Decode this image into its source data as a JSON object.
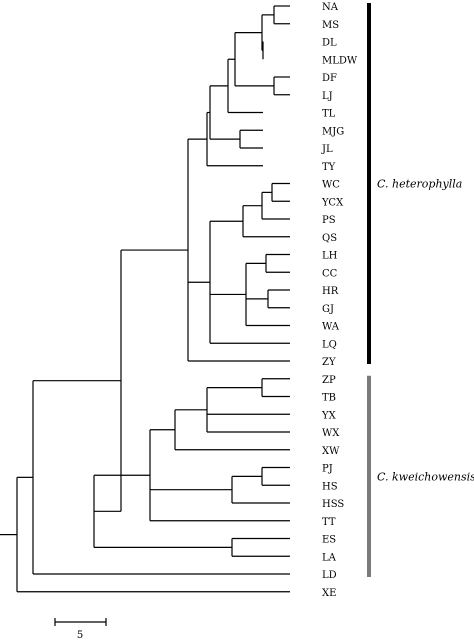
{
  "taxa": [
    "NA",
    "MS",
    "DL",
    "MLDW",
    "DF",
    "LJ",
    "TL",
    "MJG",
    "JL",
    "TY",
    "WC",
    "YCX",
    "PS",
    "QS",
    "LH",
    "CC",
    "HR",
    "GJ",
    "WA",
    "LQ",
    "ZY",
    "ZP",
    "TB",
    "YX",
    "WX",
    "XW",
    "PJ",
    "HS",
    "HSS",
    "TT",
    "ES",
    "LA",
    "LD",
    "XE"
  ],
  "groups": [
    {
      "label": "C. heterophylla",
      "color": "#000000",
      "from": "NA",
      "to": "ZY"
    },
    {
      "label": "C. kweichowensis",
      "color": "#7a7a7a",
      "from": "ZP",
      "to": "LD"
    }
  ],
  "scale": {
    "label": "5"
  }
}
